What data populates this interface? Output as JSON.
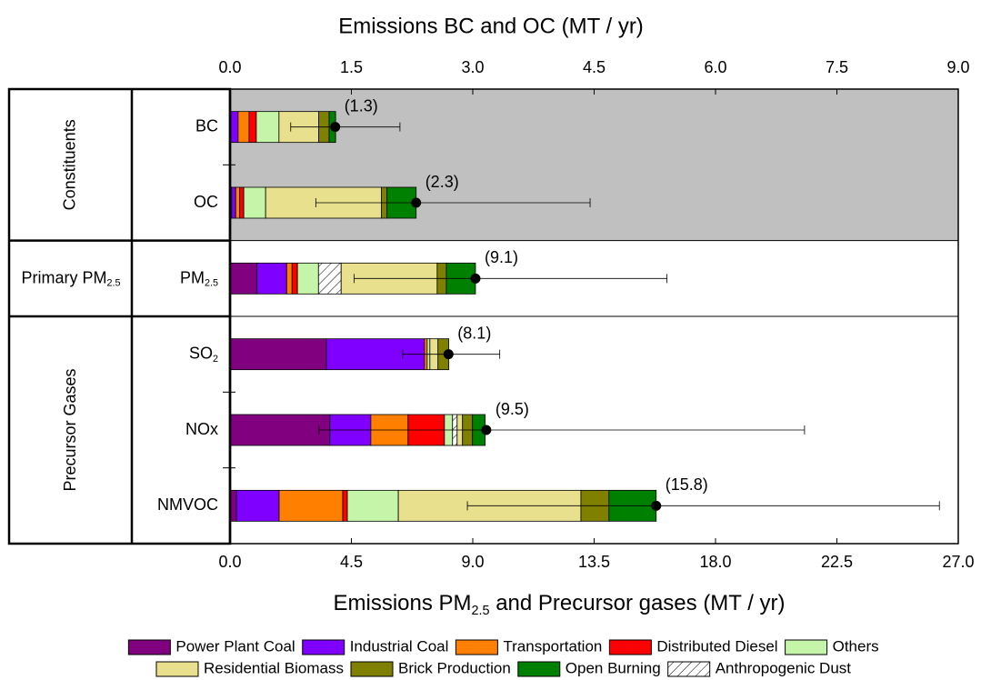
{
  "chart_data": {
    "type": "stacked-barh",
    "title": "Emissions BC and OC (MT / yr)",
    "xlabel": "Emissions PM2.5 and Precursor gases (MT / yr)",
    "categories": [
      "BC",
      "OC",
      "PM2.5",
      "SO2",
      "NOx",
      "NMVOC"
    ],
    "groups": [
      {
        "name": "Constituents",
        "size": 2,
        "axis": "x2",
        "background": "#c0c0c0"
      },
      {
        "name": "Primary PM2.5",
        "size": 1,
        "axis": "x"
      },
      {
        "name": "Precursor Gases",
        "size": 3,
        "axis": "x"
      }
    ],
    "series": [
      {
        "name": "Power Plant Coal",
        "color": "#800080",
        "values": [
          0.01,
          0.02,
          1.0,
          3.57,
          3.7,
          0.24
        ]
      },
      {
        "name": "Industrial Coal",
        "color": "#8000ff",
        "values": [
          0.09,
          0.05,
          1.1,
          3.64,
          1.52,
          1.58
        ]
      },
      {
        "name": "Transportation",
        "color": "#ff8000",
        "values": [
          0.135,
          0.05,
          0.2,
          0.1,
          1.38,
          2.36
        ]
      },
      {
        "name": "Distributed Diesel",
        "color": "#ff0000",
        "values": [
          0.09,
          0.05,
          0.2,
          0,
          1.35,
          0.17
        ]
      },
      {
        "name": "Others",
        "color": "#c4f5a8",
        "values": [
          0.28,
          0.27,
          0.78,
          0.1,
          0.3,
          1.89
        ]
      },
      {
        "name": "Anthropogenic Dust",
        "color": "#ffffff",
        "hatch": true,
        "values": [
          0,
          0,
          0.84,
          0,
          0.17,
          0
        ]
      },
      {
        "name": "Residential Biomass",
        "color": "#e8e08c",
        "values": [
          0.49,
          1.43,
          3.56,
          0.3,
          0.2,
          6.77
        ]
      },
      {
        "name": "Brick Production",
        "color": "#808000",
        "values": [
          0.13,
          0.07,
          0.34,
          0.4,
          0.37,
          1.04
        ]
      },
      {
        "name": "Open Burning",
        "color": "#008000",
        "values": [
          0.08,
          0.36,
          1.08,
          0,
          0.47,
          1.75
        ]
      }
    ],
    "totals": {
      "values": [
        1.3,
        2.3,
        9.1,
        8.1,
        9.5,
        15.8
      ],
      "value_labels": [
        "(1.3)",
        "(2.3)",
        "(9.1)",
        "(8.1)",
        "(9.5)",
        "(15.8)"
      ]
    },
    "error_low": [
      0.75,
      1.06,
      4.6,
      6.4,
      3.3,
      8.8
    ],
    "error_high": [
      2.1,
      4.45,
      16.2,
      10.0,
      21.3,
      26.3
    ],
    "xlim": [
      0,
      27
    ],
    "xticks": [
      {
        "value": 0,
        "label": "0.0"
      },
      4.5,
      {
        "value": 9,
        "label": "9.0"
      },
      13.5,
      {
        "value": 18,
        "label": "18.0"
      },
      22.5,
      {
        "value": 27,
        "label": "27.0"
      }
    ],
    "x2lim": [
      0,
      9
    ],
    "x2ticks": [
      {
        "value": 0,
        "label": "0.0"
      },
      1.5,
      {
        "value": 3,
        "label": "3.0"
      },
      4.5,
      {
        "value": 6,
        "label": "6.0"
      },
      7.5,
      {
        "value": 9,
        "label": "9.0"
      }
    ],
    "legend": "bottom"
  }
}
